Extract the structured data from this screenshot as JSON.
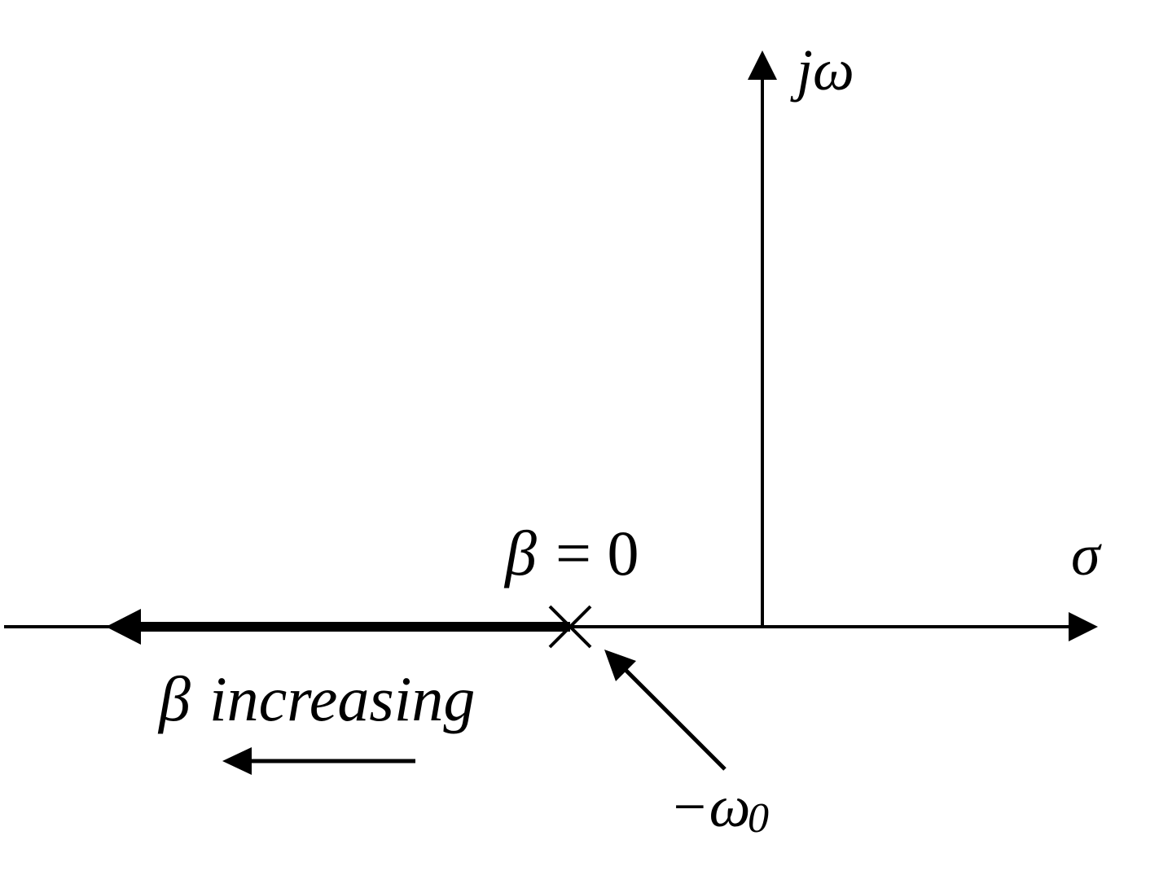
{
  "diagram": {
    "axes": {
      "vertical_label": "jω",
      "horizontal_label": "σ"
    },
    "pole": {
      "beta_symbol": "β",
      "equals_zero": "= 0"
    },
    "locus_direction": {
      "beta_symbol": "β",
      "text": "increasing"
    },
    "pole_location": {
      "prefix": "−ω",
      "subscript": "0"
    },
    "colors": {
      "stroke": "#000000",
      "background": "#ffffff"
    }
  }
}
